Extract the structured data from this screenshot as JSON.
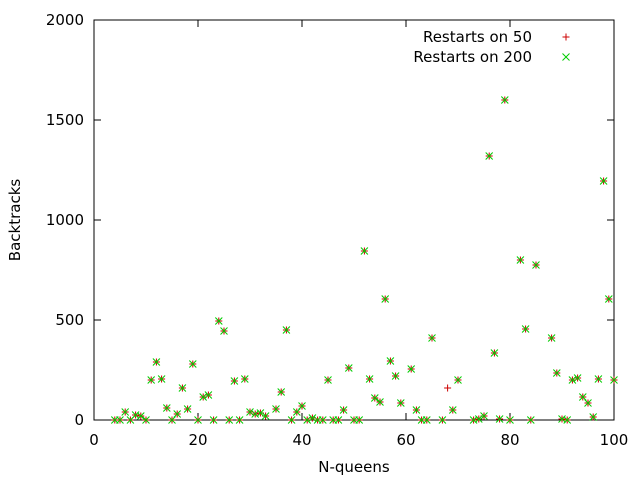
{
  "chart_data": {
    "type": "scatter",
    "title": "",
    "xlabel": "N-queens",
    "ylabel": "Backtracks",
    "xlim": [
      0,
      100
    ],
    "ylim": [
      0,
      2000
    ],
    "xticks": [
      "0",
      "20",
      "40",
      "60",
      "80",
      "100"
    ],
    "yticks": [
      "0",
      "500",
      "1000",
      "1500",
      "2000"
    ],
    "grid": false,
    "legend_position": "top-right",
    "series": [
      {
        "name": "Restarts on 50",
        "marker": "plus",
        "color": "#cc0000",
        "points": [
          [
            4,
            0
          ],
          [
            5,
            0
          ],
          [
            6,
            40
          ],
          [
            7,
            0
          ],
          [
            8,
            25
          ],
          [
            9,
            20
          ],
          [
            10,
            0
          ],
          [
            11,
            200
          ],
          [
            12,
            290
          ],
          [
            13,
            205
          ],
          [
            14,
            60
          ],
          [
            15,
            0
          ],
          [
            16,
            30
          ],
          [
            17,
            160
          ],
          [
            18,
            55
          ],
          [
            19,
            280
          ],
          [
            20,
            0
          ],
          [
            21,
            115
          ],
          [
            22,
            125
          ],
          [
            23,
            0
          ],
          [
            24,
            495
          ],
          [
            25,
            445
          ],
          [
            26,
            0
          ],
          [
            27,
            195
          ],
          [
            28,
            0
          ],
          [
            29,
            205
          ],
          [
            30,
            40
          ],
          [
            31,
            30
          ],
          [
            32,
            35
          ],
          [
            33,
            20
          ],
          [
            35,
            55
          ],
          [
            36,
            140
          ],
          [
            37,
            450
          ],
          [
            38,
            0
          ],
          [
            39,
            40
          ],
          [
            40,
            70
          ],
          [
            41,
            0
          ],
          [
            42,
            10
          ],
          [
            43,
            0
          ],
          [
            44,
            0
          ],
          [
            45,
            200
          ],
          [
            46,
            0
          ],
          [
            47,
            0
          ],
          [
            48,
            50
          ],
          [
            49,
            260
          ],
          [
            50,
            0
          ],
          [
            51,
            0
          ],
          [
            52,
            845
          ],
          [
            53,
            205
          ],
          [
            54,
            110
          ],
          [
            55,
            90
          ],
          [
            56,
            605
          ],
          [
            57,
            295
          ],
          [
            58,
            220
          ],
          [
            59,
            85
          ],
          [
            61,
            255
          ],
          [
            62,
            50
          ],
          [
            63,
            0
          ],
          [
            64,
            0
          ],
          [
            65,
            410
          ],
          [
            67,
            0
          ],
          [
            68,
            160
          ],
          [
            69,
            50
          ],
          [
            70,
            200
          ],
          [
            73,
            0
          ],
          [
            74,
            5
          ],
          [
            75,
            20
          ],
          [
            76,
            1320
          ],
          [
            77,
            335
          ],
          [
            78,
            5
          ],
          [
            79,
            1600
          ],
          [
            80,
            0
          ],
          [
            82,
            800
          ],
          [
            83,
            455
          ],
          [
            84,
            0
          ],
          [
            85,
            775
          ],
          [
            88,
            410
          ],
          [
            89,
            235
          ],
          [
            90,
            5
          ],
          [
            91,
            0
          ],
          [
            92,
            200
          ],
          [
            93,
            210
          ],
          [
            94,
            115
          ],
          [
            95,
            85
          ],
          [
            96,
            15
          ],
          [
            97,
            205
          ],
          [
            98,
            1195
          ],
          [
            99,
            605
          ],
          [
            100,
            200
          ]
        ]
      },
      {
        "name": "Restarts on 200",
        "marker": "cross",
        "color": "#00cc00",
        "points": [
          [
            4,
            0
          ],
          [
            5,
            0
          ],
          [
            6,
            40
          ],
          [
            7,
            0
          ],
          [
            8,
            25
          ],
          [
            9,
            20
          ],
          [
            10,
            0
          ],
          [
            11,
            200
          ],
          [
            12,
            290
          ],
          [
            13,
            205
          ],
          [
            14,
            60
          ],
          [
            15,
            0
          ],
          [
            16,
            30
          ],
          [
            17,
            160
          ],
          [
            18,
            55
          ],
          [
            19,
            280
          ],
          [
            20,
            0
          ],
          [
            21,
            115
          ],
          [
            22,
            125
          ],
          [
            23,
            0
          ],
          [
            24,
            495
          ],
          [
            25,
            445
          ],
          [
            26,
            0
          ],
          [
            27,
            195
          ],
          [
            28,
            0
          ],
          [
            29,
            205
          ],
          [
            30,
            40
          ],
          [
            31,
            30
          ],
          [
            32,
            35
          ],
          [
            33,
            20
          ],
          [
            35,
            55
          ],
          [
            36,
            140
          ],
          [
            37,
            450
          ],
          [
            38,
            0
          ],
          [
            39,
            40
          ],
          [
            40,
            70
          ],
          [
            41,
            0
          ],
          [
            42,
            10
          ],
          [
            43,
            0
          ],
          [
            44,
            0
          ],
          [
            45,
            200
          ],
          [
            46,
            0
          ],
          [
            47,
            0
          ],
          [
            48,
            50
          ],
          [
            49,
            260
          ],
          [
            50,
            0
          ],
          [
            51,
            0
          ],
          [
            52,
            845
          ],
          [
            53,
            205
          ],
          [
            54,
            110
          ],
          [
            55,
            90
          ],
          [
            56,
            605
          ],
          [
            57,
            295
          ],
          [
            58,
            220
          ],
          [
            59,
            85
          ],
          [
            61,
            255
          ],
          [
            62,
            50
          ],
          [
            63,
            0
          ],
          [
            64,
            0
          ],
          [
            65,
            410
          ],
          [
            67,
            0
          ],
          [
            69,
            50
          ],
          [
            70,
            200
          ],
          [
            73,
            0
          ],
          [
            74,
            5
          ],
          [
            75,
            20
          ],
          [
            76,
            1320
          ],
          [
            77,
            335
          ],
          [
            78,
            5
          ],
          [
            79,
            1600
          ],
          [
            80,
            0
          ],
          [
            82,
            800
          ],
          [
            83,
            455
          ],
          [
            84,
            0
          ],
          [
            85,
            775
          ],
          [
            88,
            410
          ],
          [
            89,
            235
          ],
          [
            90,
            5
          ],
          [
            91,
            0
          ],
          [
            92,
            200
          ],
          [
            93,
            210
          ],
          [
            94,
            115
          ],
          [
            95,
            85
          ],
          [
            96,
            15
          ],
          [
            97,
            205
          ],
          [
            98,
            1195
          ],
          [
            99,
            605
          ],
          [
            100,
            200
          ]
        ]
      }
    ]
  }
}
